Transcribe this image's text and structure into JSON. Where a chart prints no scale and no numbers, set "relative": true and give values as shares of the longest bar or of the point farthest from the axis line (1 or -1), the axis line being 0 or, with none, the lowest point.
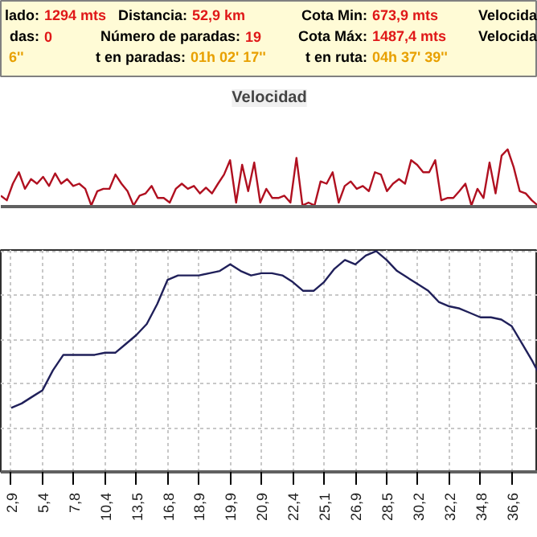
{
  "chart_data": [
    {
      "type": "other",
      "annotations": [
        "lado: 1294 mts",
        "Distancia: 52,9 km",
        "Cota Min: 673,9 mts",
        "Velocida",
        "das: 0",
        "Número de paradas: 19",
        "Cota Máx: 1487,4 mts",
        "Velocida",
        "6''",
        "t en paradas: 01h 02' 17''",
        "t en ruta: 04h 37' 39''"
      ]
    },
    {
      "type": "line",
      "title": "Velocidad",
      "relative": true,
      "tick_labels": false,
      "grid": false,
      "categories": [
        null,
        null,
        null,
        null,
        null,
        null,
        null,
        null,
        null,
        null,
        null,
        null,
        null,
        null,
        null,
        null,
        null,
        null,
        null,
        null,
        null,
        null,
        null,
        null,
        null,
        null,
        null,
        null,
        null,
        null,
        null,
        null,
        null,
        null,
        null,
        null,
        null,
        null,
        null,
        null,
        null,
        null,
        null,
        null,
        null,
        null,
        null,
        null,
        null,
        null,
        null,
        null,
        null,
        null,
        null,
        null,
        null,
        null,
        null,
        null,
        null,
        null,
        null,
        null,
        null,
        null,
        null,
        null,
        null,
        null,
        null,
        null,
        null,
        null,
        null,
        null,
        null,
        null,
        null,
        null,
        null,
        null,
        null,
        null,
        null,
        null,
        null,
        null,
        null,
        null
      ],
      "series": [
        {
          "color": "#b01020",
          "values": [
            0.19,
            0.11,
            0.4,
            0.6,
            0.31,
            0.48,
            0.4,
            0.52,
            0.36,
            0.58,
            0.4,
            0.48,
            0.36,
            0.4,
            0.31,
            0.02,
            0.27,
            0.31,
            0.31,
            0.56,
            0.4,
            0.27,
            0.02,
            0.19,
            0.23,
            0.36,
            0.15,
            0.15,
            0.07,
            0.31,
            0.4,
            0.31,
            0.36,
            0.23,
            0.33,
            0.23,
            0.4,
            0.56,
            0.81,
            0.07,
            0.73,
            0.27,
            0.77,
            0.07,
            0.31,
            0.15,
            0.15,
            0.19,
            0.07,
            0.85,
            0.02,
            0.07,
            0.02,
            0.44,
            0.4,
            0.6,
            0.07,
            0.36,
            0.44,
            0.31,
            0.36,
            0.27,
            0.6,
            0.56,
            0.27,
            0.4,
            0.48,
            0.4,
            0.81,
            0.73,
            0.6,
            0.6,
            0.81,
            0.11,
            0.15,
            0.15,
            0.27,
            0.4,
            0.02,
            0.31,
            0.15,
            0.77,
            0.23,
            0.89,
            1,
            0.69,
            0.27,
            0.23,
            0.11,
            0.02
          ]
        }
      ]
    },
    {
      "type": "line",
      "relative": true,
      "tick_labels": "x",
      "grid": true,
      "categories": [
        "2,9",
        null,
        null,
        "5,4",
        null,
        null,
        "7,8",
        null,
        null,
        "10,4",
        null,
        null,
        "13,5",
        null,
        null,
        "16,8",
        null,
        null,
        "18,9",
        null,
        null,
        "19,9",
        null,
        null,
        "20,9",
        null,
        null,
        "22,4",
        null,
        null,
        "25,1",
        null,
        null,
        "26,9",
        null,
        null,
        "28,5",
        null,
        null,
        "30,2",
        null,
        null,
        "32,2",
        null,
        null,
        "34,8",
        null,
        null,
        "36,6",
        null,
        null,
        null
      ],
      "series": [
        {
          "color": "#20205a",
          "values": [
            0.29,
            0.31,
            0.34,
            0.37,
            0.46,
            0.53,
            0.53,
            0.53,
            0.53,
            0.54,
            0.54,
            0.58,
            0.62,
            0.67,
            0.76,
            0.87,
            0.89,
            0.89,
            0.89,
            0.9,
            0.91,
            0.94,
            0.91,
            0.89,
            0.9,
            0.9,
            0.89,
            0.86,
            0.82,
            0.82,
            0.86,
            0.92,
            0.96,
            0.94,
            0.98,
            1,
            0.96,
            0.91,
            0.88,
            0.85,
            0.82,
            0.77,
            0.75,
            0.74,
            0.72,
            0.7,
            0.7,
            0.69,
            0.66,
            0.58,
            0.5,
            0.41
          ]
        }
      ]
    }
  ]
}
